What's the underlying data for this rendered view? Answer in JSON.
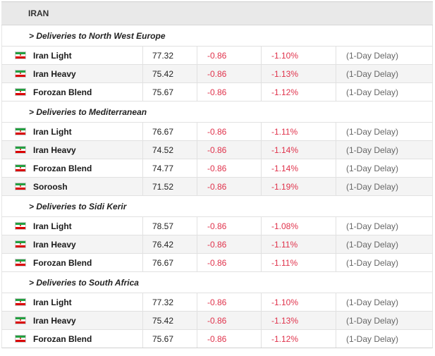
{
  "header": {
    "title": "IRAN"
  },
  "sections": [
    {
      "title": "> Deliveries to North West Europe",
      "rows": [
        {
          "name": "Iran Light",
          "price": "77.32",
          "change": "-0.86",
          "pct": "-1.10%",
          "delay": "(1-Day Delay)"
        },
        {
          "name": "Iran Heavy",
          "price": "75.42",
          "change": "-0.86",
          "pct": "-1.13%",
          "delay": "(1-Day Delay)"
        },
        {
          "name": "Forozan Blend",
          "price": "75.67",
          "change": "-0.86",
          "pct": "-1.12%",
          "delay": "(1-Day Delay)"
        }
      ]
    },
    {
      "title": "> Deliveries to Mediterranean",
      "rows": [
        {
          "name": "Iran Light",
          "price": "76.67",
          "change": "-0.86",
          "pct": "-1.11%",
          "delay": "(1-Day Delay)"
        },
        {
          "name": "Iran Heavy",
          "price": "74.52",
          "change": "-0.86",
          "pct": "-1.14%",
          "delay": "(1-Day Delay)"
        },
        {
          "name": "Forozan Blend",
          "price": "74.77",
          "change": "-0.86",
          "pct": "-1.14%",
          "delay": "(1-Day Delay)"
        },
        {
          "name": "Soroosh",
          "price": "71.52",
          "change": "-0.86",
          "pct": "-1.19%",
          "delay": "(1-Day Delay)"
        }
      ]
    },
    {
      "title": "> Deliveries to Sidi Kerir",
      "rows": [
        {
          "name": "Iran Light",
          "price": "78.57",
          "change": "-0.86",
          "pct": "-1.08%",
          "delay": "(1-Day Delay)"
        },
        {
          "name": "Iran Heavy",
          "price": "76.42",
          "change": "-0.86",
          "pct": "-1.11%",
          "delay": "(1-Day Delay)"
        },
        {
          "name": "Forozan Blend",
          "price": "76.67",
          "change": "-0.86",
          "pct": "-1.11%",
          "delay": "(1-Day Delay)"
        }
      ]
    },
    {
      "title": "> Deliveries to South Africa",
      "rows": [
        {
          "name": "Iran Light",
          "price": "77.32",
          "change": "-0.86",
          "pct": "-1.10%",
          "delay": "(1-Day Delay)"
        },
        {
          "name": "Iran Heavy",
          "price": "75.42",
          "change": "-0.86",
          "pct": "-1.13%",
          "delay": "(1-Day Delay)"
        },
        {
          "name": "Forozan Blend",
          "price": "75.67",
          "change": "-0.86",
          "pct": "-1.12%",
          "delay": "(1-Day Delay)"
        }
      ]
    }
  ],
  "icons": {
    "row_flag": "iran-flag-icon"
  },
  "colors": {
    "negative": "#e0334c",
    "header_bg": "#e9e9e9",
    "alt_row_bg": "#f4f4f4"
  }
}
